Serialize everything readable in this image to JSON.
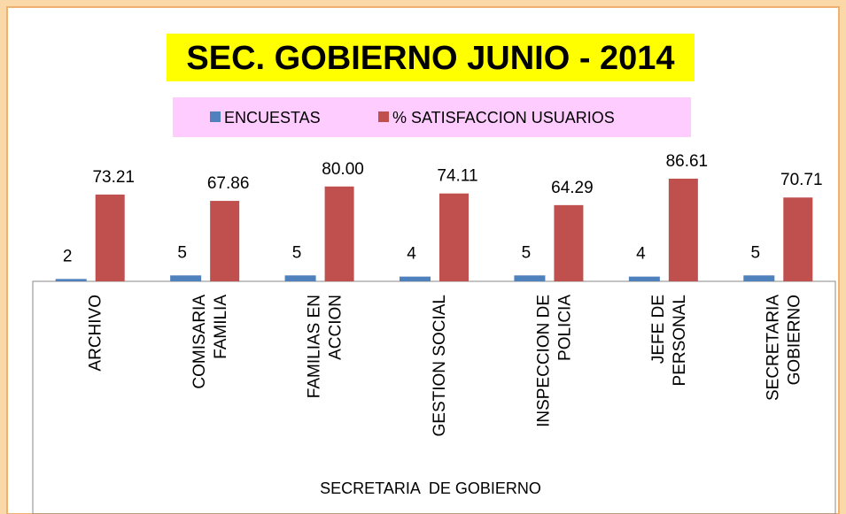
{
  "chart_data": {
    "type": "bar",
    "title": "SEC. GOBIERNO JUNIO - 2014",
    "x_label": "SECRETARIA  DE GOBIERNO",
    "categories": [
      "ARCHIVO",
      "COMISARIA\nFAMILIA",
      "FAMILIAS EN\nACCION",
      "GESTION SOCIAL",
      "INSPECCION DE\nPOLICIA",
      "JEFE DE\nPERSONAL",
      "SECRETARIA\nGOBIERNO"
    ],
    "series": [
      {
        "name": "ENCUESTAS",
        "color": "#4f81bd",
        "values": [
          2,
          5,
          5,
          4,
          5,
          4,
          5
        ]
      },
      {
        "name": "% SATISFACCION USUARIOS",
        "color": "#c0504d",
        "values": [
          73.21,
          67.86,
          80,
          74.11,
          64.29,
          86.61,
          70.71
        ],
        "value_labels": [
          "73.21",
          "67.86",
          "80.00",
          "74.11",
          "64.29",
          "86.61",
          "70.71"
        ]
      }
    ],
    "ylim": [
      0,
      100
    ]
  }
}
